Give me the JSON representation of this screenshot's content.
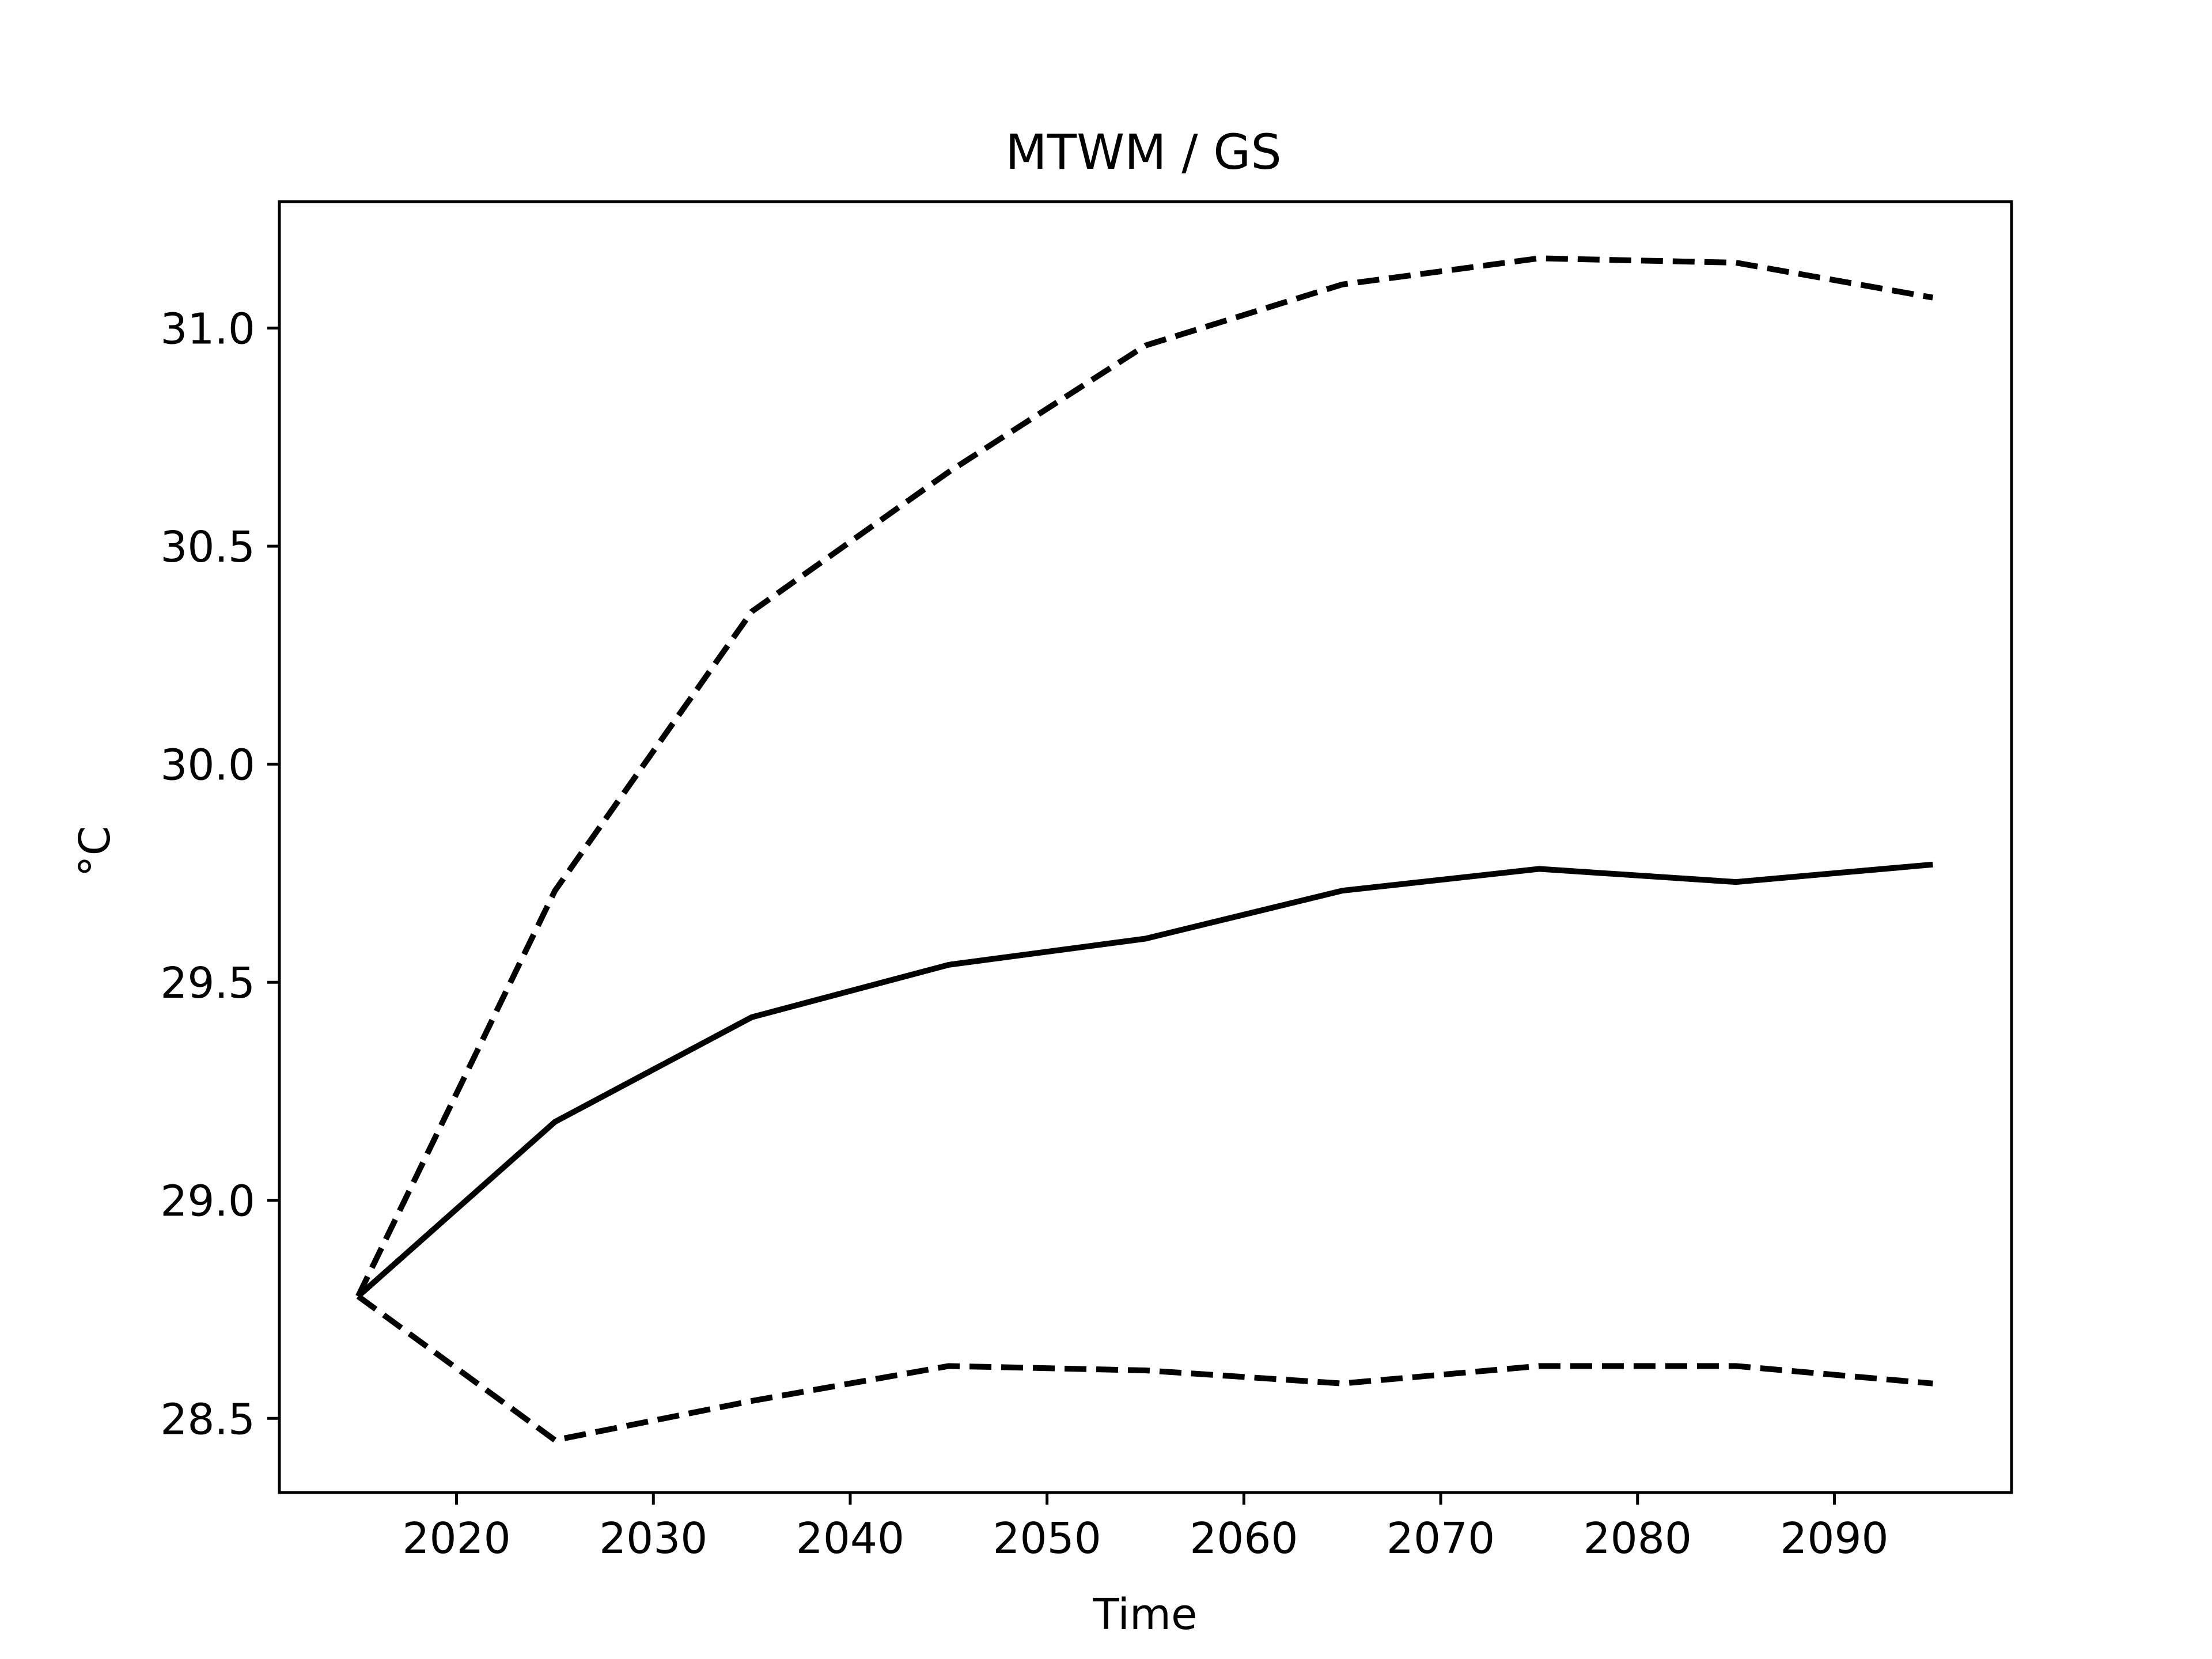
{
  "chart_data": {
    "type": "line",
    "title": "MTWM / GS",
    "xlabel": "Time",
    "ylabel": "°C",
    "x": [
      2015,
      2025,
      2035,
      2045,
      2055,
      2065,
      2075,
      2085,
      2095
    ],
    "xlim": [
      2011,
      2099
    ],
    "ylim": [
      28.33,
      31.29
    ],
    "xticks": [
      2020,
      2030,
      2040,
      2050,
      2060,
      2070,
      2080,
      2090
    ],
    "xtick_labels": [
      "2020",
      "2030",
      "2040",
      "2050",
      "2060",
      "2070",
      "2080",
      "2090"
    ],
    "yticks": [
      28.5,
      29.0,
      29.5,
      30.0,
      30.5,
      31.0
    ],
    "ytick_labels": [
      "28.5",
      "29.0",
      "29.5",
      "30.0",
      "30.5",
      "31.0"
    ],
    "grid": false,
    "series": [
      {
        "style": "solid",
        "color": "#000000",
        "values": [
          28.78,
          29.18,
          29.42,
          29.54,
          29.6,
          29.71,
          29.76,
          29.73,
          29.77
        ]
      },
      {
        "style": "dashed",
        "color": "#000000",
        "values": [
          28.78,
          29.71,
          30.35,
          30.67,
          30.96,
          31.1,
          31.16,
          31.15,
          31.07
        ]
      },
      {
        "style": "dashed",
        "color": "#000000",
        "values": [
          28.78,
          28.45,
          28.54,
          28.62,
          28.61,
          28.58,
          28.62,
          28.62,
          28.58
        ]
      }
    ]
  }
}
